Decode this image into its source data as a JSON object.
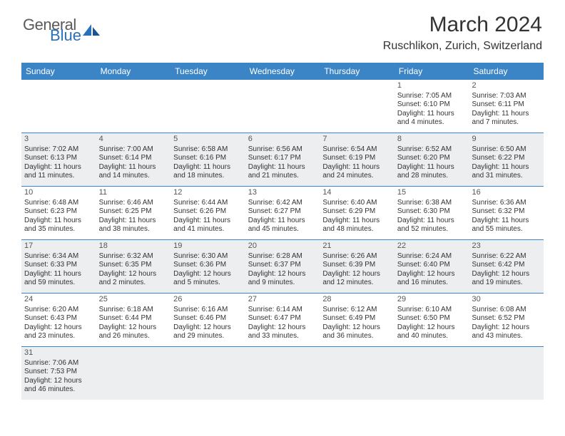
{
  "header": {
    "logo_general": "General",
    "logo_blue": "Blue",
    "month_title": "March 2024",
    "location": "Ruschlikon, Zurich, Switzerland"
  },
  "day_names": [
    "Sunday",
    "Monday",
    "Tuesday",
    "Wednesday",
    "Thursday",
    "Friday",
    "Saturday"
  ],
  "colors": {
    "header_bg": "#3b85c6",
    "header_text": "#ffffff",
    "alt_row": "#eceeef",
    "border": "#3b85c6",
    "logo_gray": "#5a5a5a",
    "logo_blue": "#2970b8"
  },
  "weeks": [
    [
      {
        "day": "",
        "sunrise": "",
        "sunset": "",
        "daylight": ""
      },
      {
        "day": "",
        "sunrise": "",
        "sunset": "",
        "daylight": ""
      },
      {
        "day": "",
        "sunrise": "",
        "sunset": "",
        "daylight": ""
      },
      {
        "day": "",
        "sunrise": "",
        "sunset": "",
        "daylight": ""
      },
      {
        "day": "",
        "sunrise": "",
        "sunset": "",
        "daylight": ""
      },
      {
        "day": "1",
        "sunrise": "Sunrise: 7:05 AM",
        "sunset": "Sunset: 6:10 PM",
        "daylight": "Daylight: 11 hours and 4 minutes."
      },
      {
        "day": "2",
        "sunrise": "Sunrise: 7:03 AM",
        "sunset": "Sunset: 6:11 PM",
        "daylight": "Daylight: 11 hours and 7 minutes."
      }
    ],
    [
      {
        "day": "3",
        "sunrise": "Sunrise: 7:02 AM",
        "sunset": "Sunset: 6:13 PM",
        "daylight": "Daylight: 11 hours and 11 minutes."
      },
      {
        "day": "4",
        "sunrise": "Sunrise: 7:00 AM",
        "sunset": "Sunset: 6:14 PM",
        "daylight": "Daylight: 11 hours and 14 minutes."
      },
      {
        "day": "5",
        "sunrise": "Sunrise: 6:58 AM",
        "sunset": "Sunset: 6:16 PM",
        "daylight": "Daylight: 11 hours and 18 minutes."
      },
      {
        "day": "6",
        "sunrise": "Sunrise: 6:56 AM",
        "sunset": "Sunset: 6:17 PM",
        "daylight": "Daylight: 11 hours and 21 minutes."
      },
      {
        "day": "7",
        "sunrise": "Sunrise: 6:54 AM",
        "sunset": "Sunset: 6:19 PM",
        "daylight": "Daylight: 11 hours and 24 minutes."
      },
      {
        "day": "8",
        "sunrise": "Sunrise: 6:52 AM",
        "sunset": "Sunset: 6:20 PM",
        "daylight": "Daylight: 11 hours and 28 minutes."
      },
      {
        "day": "9",
        "sunrise": "Sunrise: 6:50 AM",
        "sunset": "Sunset: 6:22 PM",
        "daylight": "Daylight: 11 hours and 31 minutes."
      }
    ],
    [
      {
        "day": "10",
        "sunrise": "Sunrise: 6:48 AM",
        "sunset": "Sunset: 6:23 PM",
        "daylight": "Daylight: 11 hours and 35 minutes."
      },
      {
        "day": "11",
        "sunrise": "Sunrise: 6:46 AM",
        "sunset": "Sunset: 6:25 PM",
        "daylight": "Daylight: 11 hours and 38 minutes."
      },
      {
        "day": "12",
        "sunrise": "Sunrise: 6:44 AM",
        "sunset": "Sunset: 6:26 PM",
        "daylight": "Daylight: 11 hours and 41 minutes."
      },
      {
        "day": "13",
        "sunrise": "Sunrise: 6:42 AM",
        "sunset": "Sunset: 6:27 PM",
        "daylight": "Daylight: 11 hours and 45 minutes."
      },
      {
        "day": "14",
        "sunrise": "Sunrise: 6:40 AM",
        "sunset": "Sunset: 6:29 PM",
        "daylight": "Daylight: 11 hours and 48 minutes."
      },
      {
        "day": "15",
        "sunrise": "Sunrise: 6:38 AM",
        "sunset": "Sunset: 6:30 PM",
        "daylight": "Daylight: 11 hours and 52 minutes."
      },
      {
        "day": "16",
        "sunrise": "Sunrise: 6:36 AM",
        "sunset": "Sunset: 6:32 PM",
        "daylight": "Daylight: 11 hours and 55 minutes."
      }
    ],
    [
      {
        "day": "17",
        "sunrise": "Sunrise: 6:34 AM",
        "sunset": "Sunset: 6:33 PM",
        "daylight": "Daylight: 11 hours and 59 minutes."
      },
      {
        "day": "18",
        "sunrise": "Sunrise: 6:32 AM",
        "sunset": "Sunset: 6:35 PM",
        "daylight": "Daylight: 12 hours and 2 minutes."
      },
      {
        "day": "19",
        "sunrise": "Sunrise: 6:30 AM",
        "sunset": "Sunset: 6:36 PM",
        "daylight": "Daylight: 12 hours and 5 minutes."
      },
      {
        "day": "20",
        "sunrise": "Sunrise: 6:28 AM",
        "sunset": "Sunset: 6:37 PM",
        "daylight": "Daylight: 12 hours and 9 minutes."
      },
      {
        "day": "21",
        "sunrise": "Sunrise: 6:26 AM",
        "sunset": "Sunset: 6:39 PM",
        "daylight": "Daylight: 12 hours and 12 minutes."
      },
      {
        "day": "22",
        "sunrise": "Sunrise: 6:24 AM",
        "sunset": "Sunset: 6:40 PM",
        "daylight": "Daylight: 12 hours and 16 minutes."
      },
      {
        "day": "23",
        "sunrise": "Sunrise: 6:22 AM",
        "sunset": "Sunset: 6:42 PM",
        "daylight": "Daylight: 12 hours and 19 minutes."
      }
    ],
    [
      {
        "day": "24",
        "sunrise": "Sunrise: 6:20 AM",
        "sunset": "Sunset: 6:43 PM",
        "daylight": "Daylight: 12 hours and 23 minutes."
      },
      {
        "day": "25",
        "sunrise": "Sunrise: 6:18 AM",
        "sunset": "Sunset: 6:44 PM",
        "daylight": "Daylight: 12 hours and 26 minutes."
      },
      {
        "day": "26",
        "sunrise": "Sunrise: 6:16 AM",
        "sunset": "Sunset: 6:46 PM",
        "daylight": "Daylight: 12 hours and 29 minutes."
      },
      {
        "day": "27",
        "sunrise": "Sunrise: 6:14 AM",
        "sunset": "Sunset: 6:47 PM",
        "daylight": "Daylight: 12 hours and 33 minutes."
      },
      {
        "day": "28",
        "sunrise": "Sunrise: 6:12 AM",
        "sunset": "Sunset: 6:49 PM",
        "daylight": "Daylight: 12 hours and 36 minutes."
      },
      {
        "day": "29",
        "sunrise": "Sunrise: 6:10 AM",
        "sunset": "Sunset: 6:50 PM",
        "daylight": "Daylight: 12 hours and 40 minutes."
      },
      {
        "day": "30",
        "sunrise": "Sunrise: 6:08 AM",
        "sunset": "Sunset: 6:52 PM",
        "daylight": "Daylight: 12 hours and 43 minutes."
      }
    ],
    [
      {
        "day": "31",
        "sunrise": "Sunrise: 7:06 AM",
        "sunset": "Sunset: 7:53 PM",
        "daylight": "Daylight: 12 hours and 46 minutes."
      },
      {
        "day": "",
        "sunrise": "",
        "sunset": "",
        "daylight": ""
      },
      {
        "day": "",
        "sunrise": "",
        "sunset": "",
        "daylight": ""
      },
      {
        "day": "",
        "sunrise": "",
        "sunset": "",
        "daylight": ""
      },
      {
        "day": "",
        "sunrise": "",
        "sunset": "",
        "daylight": ""
      },
      {
        "day": "",
        "sunrise": "",
        "sunset": "",
        "daylight": ""
      },
      {
        "day": "",
        "sunrise": "",
        "sunset": "",
        "daylight": ""
      }
    ]
  ]
}
